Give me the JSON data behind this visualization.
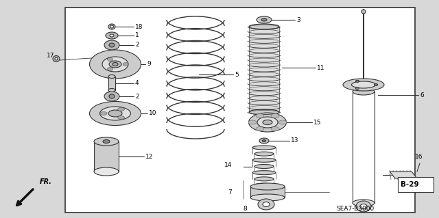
{
  "bg_color": "#ffffff",
  "outer_bg": "#d8d8d8",
  "border_color": "#444444",
  "line_color": "#333333",
  "fill_light": "#e8e8e8",
  "fill_mid": "#cccccc",
  "fill_dark": "#aaaaaa",
  "label_color": "#000000",
  "bottom_text": "SEA7-B3000",
  "badge_text": "B-29",
  "fr_text": "FR.",
  "figsize": [
    6.4,
    3.19
  ],
  "dpi": 100
}
